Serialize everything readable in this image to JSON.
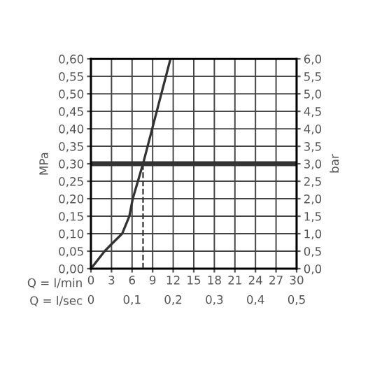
{
  "chart_data": {
    "type": "line",
    "xlabel": "Q = l/min",
    "x2label": "Q = l/sec",
    "ylabel": "MPa",
    "y2label": "bar",
    "series": [
      {
        "color": "#333333",
        "x": [
          0,
          1.0,
          2.0,
          3.0,
          4.55,
          5.6,
          6.1,
          7.6,
          9.6,
          11.6
        ],
        "values": [
          0,
          0.025,
          0.05,
          0.07,
          0.1,
          0.15,
          0.2,
          0.3,
          0.45,
          0.6
        ]
      },
      {
        "color": "#333333",
        "line_style": "dashed",
        "x": [
          7.6,
          7.6
        ],
        "values": [
          0,
          0.3
        ]
      }
    ],
    "ref_lines": [
      {
        "axis": "y",
        "value": 0.3,
        "color": "#333333"
      }
    ],
    "xlim": [
      0,
      30
    ],
    "xticks": [
      0,
      3,
      6,
      9,
      12,
      15,
      18,
      21,
      24,
      27,
      30
    ],
    "x2lim": [
      0,
      0.5
    ],
    "x2ticks": [
      0,
      {
        "value": 0.1,
        "label": "0,1"
      },
      {
        "value": 0.2,
        "label": "0,2"
      },
      {
        "value": 0.3,
        "label": "0,3"
      },
      {
        "value": 0.4,
        "label": "0,4"
      },
      {
        "value": 0.5,
        "label": "0,5"
      }
    ],
    "ylim": [
      0,
      0.6
    ],
    "yticks": [
      {
        "value": 0,
        "label": "0,00"
      },
      {
        "value": 0.05,
        "label": "0,05"
      },
      {
        "value": 0.1,
        "label": "0,10"
      },
      {
        "value": 0.15,
        "label": "0,15"
      },
      {
        "value": 0.2,
        "label": "0,20"
      },
      {
        "value": 0.25,
        "label": "0,25"
      },
      {
        "value": 0.3,
        "label": "0,30"
      },
      {
        "value": 0.35,
        "label": "0,35"
      },
      {
        "value": 0.4,
        "label": "0,40"
      },
      {
        "value": 0.45,
        "label": "0,45"
      },
      {
        "value": 0.5,
        "label": "0,50"
      },
      {
        "value": 0.55,
        "label": "0,55"
      },
      {
        "value": 0.6,
        "label": "0,60"
      }
    ],
    "y2lim": [
      0,
      6
    ],
    "y2ticks": [
      {
        "value": 0,
        "label": "0,0"
      },
      {
        "value": 0.5,
        "label": "0,5"
      },
      {
        "value": 1,
        "label": "1,0"
      },
      {
        "value": 1.5,
        "label": "1,5"
      },
      {
        "value": 2,
        "label": "2,0"
      },
      {
        "value": 2.5,
        "label": "2,5"
      },
      {
        "value": 3,
        "label": "3,0"
      },
      {
        "value": 3.5,
        "label": "3,5"
      },
      {
        "value": 4,
        "label": "4,0"
      },
      {
        "value": 4.5,
        "label": "4,5"
      },
      {
        "value": 5,
        "label": "5,0"
      },
      {
        "value": 5.5,
        "label": "5,5"
      },
      {
        "value": 6,
        "label": "6,0"
      }
    ],
    "grid": true,
    "marker": "none"
  }
}
